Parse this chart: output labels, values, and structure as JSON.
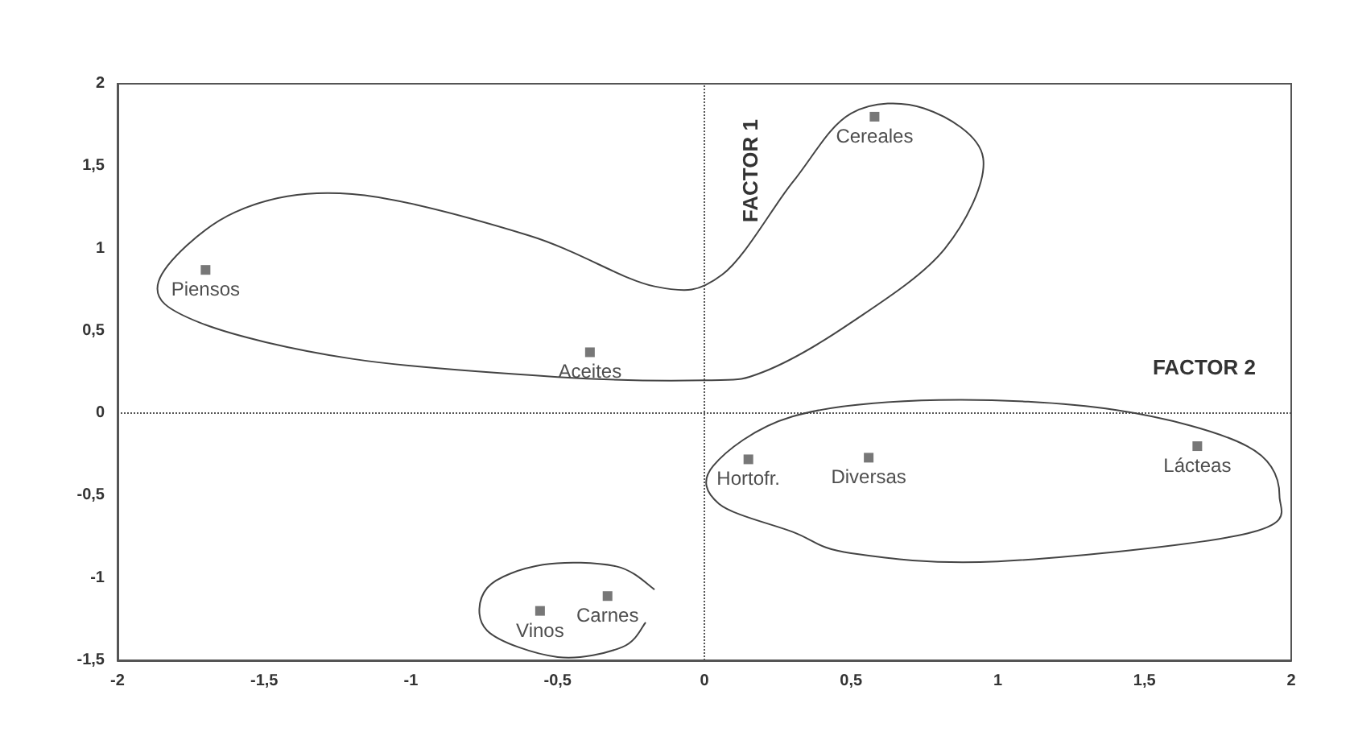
{
  "chart_data": {
    "type": "scatter",
    "marker": "square",
    "grid": false,
    "xlim": [
      -2,
      2
    ],
    "xticks": [
      -2,
      {
        "value": -1.5,
        "label": "-1,5"
      },
      -1,
      {
        "value": -0.5,
        "label": "-0,5"
      },
      0,
      {
        "value": 0.5,
        "label": "0,5"
      },
      1,
      {
        "value": 1.5,
        "label": "1,5"
      },
      2
    ],
    "ylim": [
      -1.5,
      2
    ],
    "yticks": [
      {
        "value": -1.5,
        "label": "-1,5"
      },
      -1,
      {
        "value": -0.5,
        "label": "-0,5"
      },
      0,
      {
        "value": 0.5,
        "label": "0,5"
      },
      1,
      {
        "value": 1.5,
        "label": "1,5"
      },
      2
    ],
    "ref_lines": [
      {
        "axis": "x",
        "value": 0,
        "label": "FACTOR 1",
        "line_style": "dotted",
        "color": "#555555"
      },
      {
        "axis": "y",
        "value": 0,
        "label": "FACTOR 2",
        "line_style": "dotted",
        "color": "#555555"
      }
    ],
    "series": [
      {
        "name": "Piensos",
        "color": "#555555",
        "x": [
          -1.7
        ],
        "values": [
          0.87
        ]
      },
      {
        "name": "Aceites",
        "color": "#555555",
        "x": [
          -0.39
        ],
        "values": [
          0.37
        ]
      },
      {
        "name": "Cereales",
        "color": "#555555",
        "x": [
          0.58
        ],
        "values": [
          1.8
        ]
      },
      {
        "name": "Hortofr.",
        "color": "#555555",
        "x": [
          0.15
        ],
        "values": [
          -0.28
        ]
      },
      {
        "name": "Diversas",
        "color": "#555555",
        "x": [
          0.56
        ],
        "values": [
          -0.27
        ]
      },
      {
        "name": "Lácteas",
        "color": "#555555",
        "x": [
          1.68
        ],
        "values": [
          -0.2
        ]
      },
      {
        "name": "Carnes",
        "color": "#555555",
        "x": [
          -0.33
        ],
        "values": [
          -1.11
        ]
      },
      {
        "name": "Vinos",
        "color": "#555555",
        "x": [
          -0.56
        ],
        "values": [
          -1.2
        ]
      }
    ]
  }
}
